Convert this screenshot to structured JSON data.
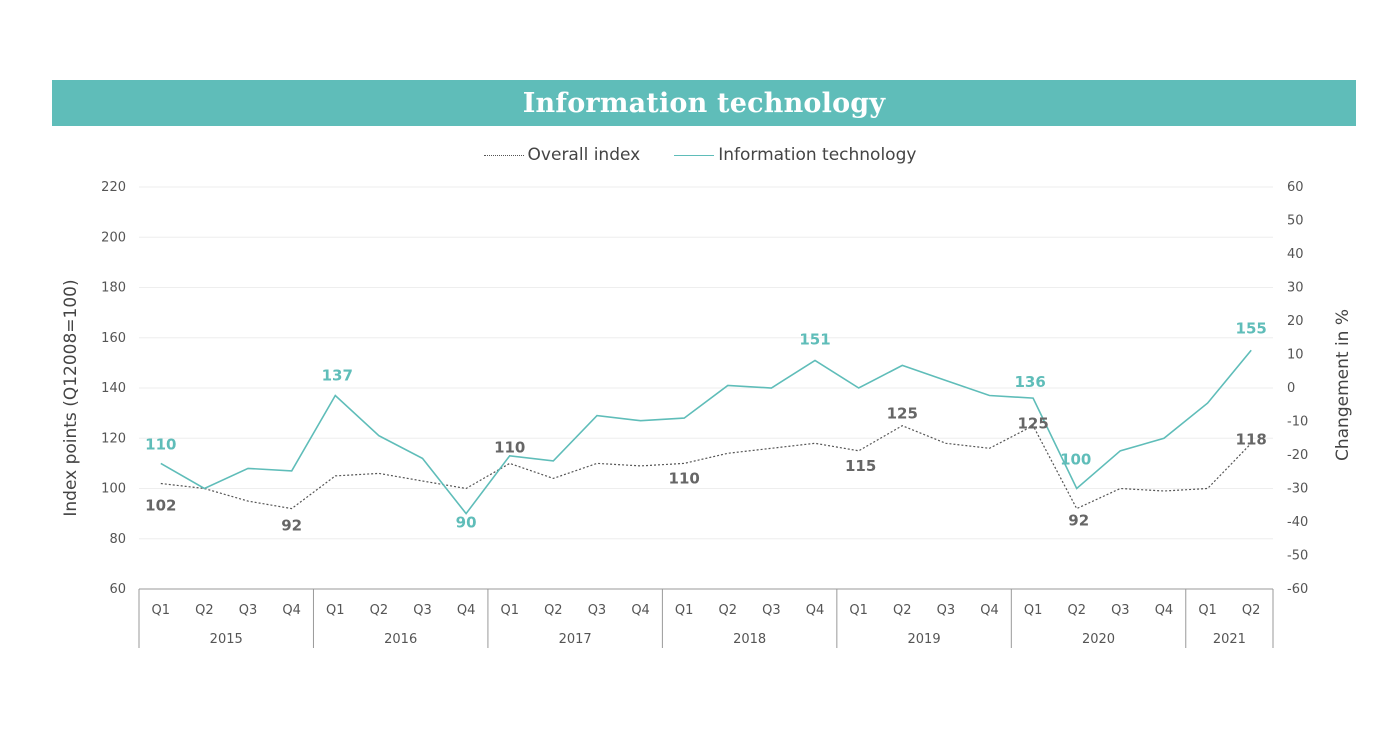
{
  "title": "Information technology",
  "legend": {
    "overall": "Overall index",
    "it": "Information technology"
  },
  "colors": {
    "accent": "#5fbdb9",
    "overall": "#555555",
    "grid": "#eeeeee"
  },
  "chart_data": {
    "type": "line",
    "title": "Information technology",
    "ylabel": "Index points (Q12008=100)",
    "y2label": "Changement in %",
    "ylim": [
      60,
      220
    ],
    "y2lim": [
      -60,
      60
    ],
    "y_ticks": [
      "60",
      "80",
      "100",
      "120",
      "140",
      "160",
      "180",
      "200",
      "220"
    ],
    "y2_ticks": [
      "-60",
      "-50",
      "-40",
      "-30",
      "-20",
      "-10",
      "0",
      "10",
      "20",
      "30",
      "40",
      "50",
      "60"
    ],
    "years": [
      {
        "label": "2015",
        "quarters": [
          "Q1",
          "Q2",
          "Q3",
          "Q4"
        ]
      },
      {
        "label": "2016",
        "quarters": [
          "Q1",
          "Q2",
          "Q3",
          "Q4"
        ]
      },
      {
        "label": "2017",
        "quarters": [
          "Q1",
          "Q2",
          "Q3",
          "Q4"
        ]
      },
      {
        "label": "2018",
        "quarters": [
          "Q1",
          "Q2",
          "Q3",
          "Q4"
        ]
      },
      {
        "label": "2019",
        "quarters": [
          "Q1",
          "Q2",
          "Q3",
          "Q4"
        ]
      },
      {
        "label": "2020",
        "quarters": [
          "Q1",
          "Q2",
          "Q3",
          "Q4"
        ]
      },
      {
        "label": "2021",
        "quarters": [
          "Q1",
          "Q2"
        ]
      }
    ],
    "series": [
      {
        "name": "Overall index",
        "values": [
          102,
          100,
          95,
          92,
          105,
          106,
          103,
          100,
          110,
          104,
          110,
          109,
          110,
          114,
          116,
          118,
          115,
          125,
          118,
          116,
          125,
          92,
          100,
          99,
          100,
          118
        ],
        "labels": [
          {
            "i": 0,
            "text": "102"
          },
          {
            "i": 3,
            "text": "92"
          },
          {
            "i": 8,
            "text": "110"
          },
          {
            "i": 12,
            "text": "110"
          },
          {
            "i": 16,
            "text": "115"
          },
          {
            "i": 17,
            "text": "125"
          },
          {
            "i": 20,
            "text": "125"
          },
          {
            "i": 21,
            "text": "92"
          },
          {
            "i": 25,
            "text": "118"
          }
        ]
      },
      {
        "name": "Information technology",
        "values": [
          110,
          100,
          108,
          107,
          137,
          121,
          112,
          90,
          113,
          111,
          129,
          127,
          128,
          141,
          140,
          151,
          140,
          149,
          143,
          137,
          136,
          100,
          115,
          120,
          134,
          155
        ],
        "labels": [
          {
            "i": 0,
            "text": "110"
          },
          {
            "i": 4,
            "text": "137"
          },
          {
            "i": 7,
            "text": "90"
          },
          {
            "i": 15,
            "text": "151"
          },
          {
            "i": 20,
            "text": "136"
          },
          {
            "i": 21,
            "text": "100"
          },
          {
            "i": 25,
            "text": "155"
          }
        ]
      }
    ]
  }
}
